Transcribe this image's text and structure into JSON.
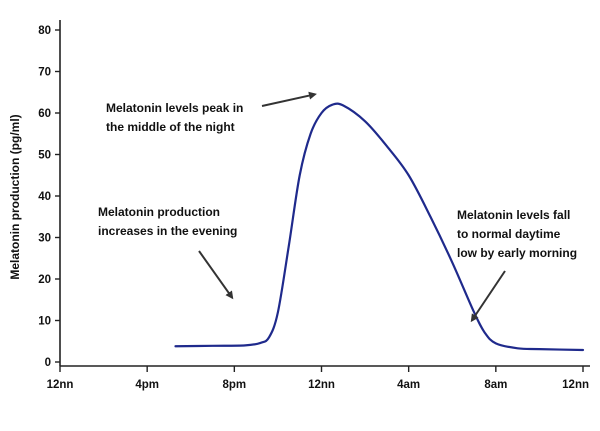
{
  "chart_data": {
    "type": "line",
    "title": "",
    "xlabel": "",
    "ylabel": "Melatonin production (pg/ml)",
    "grid": false,
    "legend": "none",
    "line_color": "#1f2a8c",
    "ylim": [
      0,
      80
    ],
    "yticks": [
      0,
      10,
      20,
      30,
      40,
      50,
      60,
      70,
      80
    ],
    "xlim": [
      0,
      24
    ],
    "xticks": [
      {
        "value": 0,
        "label": "12nn"
      },
      {
        "value": 4,
        "label": "4pm"
      },
      {
        "value": 8,
        "label": "8pm"
      },
      {
        "value": 12,
        "label": "12nn"
      },
      {
        "value": 16,
        "label": "4am"
      },
      {
        "value": 20,
        "label": "8am"
      },
      {
        "value": 24,
        "label": "12nn"
      }
    ],
    "series": [
      {
        "points": [
          [
            5.3,
            3.8
          ],
          [
            7,
            3.9
          ],
          [
            8.5,
            4.0
          ],
          [
            9.2,
            4.6
          ],
          [
            9.6,
            6.0
          ],
          [
            10.0,
            12.0
          ],
          [
            10.5,
            28.0
          ],
          [
            11.0,
            45.0
          ],
          [
            11.5,
            55.0
          ],
          [
            12.0,
            60.0
          ],
          [
            12.5,
            62.0
          ],
          [
            13.0,
            61.8
          ],
          [
            14.0,
            58.0
          ],
          [
            15.0,
            52.0
          ],
          [
            16.0,
            45.0
          ],
          [
            17.0,
            35.0
          ],
          [
            18.0,
            24.0
          ],
          [
            19.0,
            12.0
          ],
          [
            19.5,
            7.0
          ],
          [
            20.0,
            4.5
          ],
          [
            21.0,
            3.3
          ],
          [
            22.0,
            3.1
          ],
          [
            24.0,
            2.9
          ]
        ]
      }
    ],
    "annotations": [
      {
        "lines": [
          "Melatonin levels peak in",
          "the middle of the night"
        ],
        "arrow_tip": [
          11.7,
          64.5
        ]
      },
      {
        "lines": [
          "Melatonin production",
          "increases in the evening"
        ],
        "arrow_tip": [
          7.9,
          15.5
        ]
      },
      {
        "lines": [
          "Melatonin levels fall",
          "to normal daytime",
          "low by early morning"
        ],
        "arrow_tip": [
          18.9,
          10.0
        ]
      }
    ]
  }
}
